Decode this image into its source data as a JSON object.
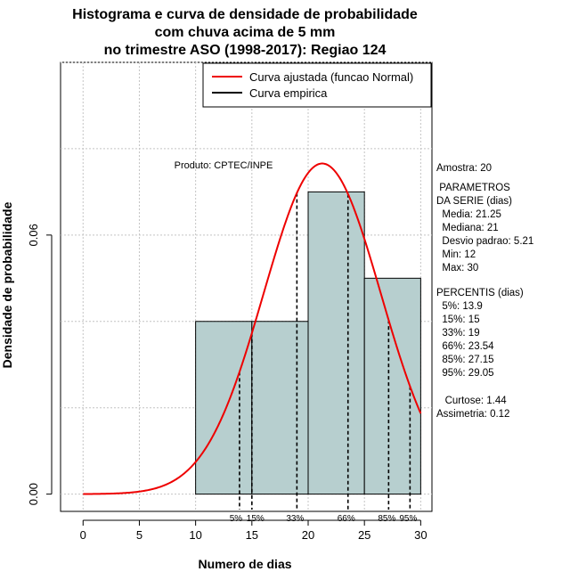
{
  "chart_data": {
    "type": "histogram",
    "title_lines": [
      "Histograma e curva de densidade de probabilidade",
      "com chuva acima de 5 mm",
      "no trimestre ASO (1998-2017): Regiao 124"
    ],
    "xlabel": "Numero de dias",
    "ylabel": "Densidade de probabilidade",
    "xlim": [
      -2,
      31
    ],
    "ylim": [
      -0.004,
      0.1
    ],
    "x_ticks": [
      0,
      5,
      10,
      15,
      20,
      25,
      30
    ],
    "y_ticks": [
      0.0,
      0.06
    ],
    "y_tick_labels": [
      "0.00",
      "0.06"
    ],
    "grid": true,
    "bar_color": "#b7cfcf",
    "curve_color": "#ee0000",
    "bins": [
      {
        "from": 10,
        "to": 15,
        "density": 0.04
      },
      {
        "from": 15,
        "to": 20,
        "density": 0.04
      },
      {
        "from": 20,
        "to": 25,
        "density": 0.07
      },
      {
        "from": 25,
        "to": 30,
        "density": 0.05
      }
    ],
    "normal_fit": {
      "mean": 21.25,
      "sd": 5.21,
      "x_from": 0,
      "x_to": 30
    },
    "percentile_markers": [
      {
        "label": "5%",
        "x": 13.9
      },
      {
        "label": "15%",
        "x": 15
      },
      {
        "label": "33%",
        "x": 19
      },
      {
        "label": "66%",
        "x": 23.54
      },
      {
        "label": "85%",
        "x": 27.15
      },
      {
        "label": "95%",
        "x": 29.05
      }
    ],
    "legend": {
      "position": "top-right",
      "entries": [
        {
          "label": "Curva ajustada (funcao Normal)",
          "color": "#ee0000"
        },
        {
          "label": "Curva empirica",
          "color": "#000000"
        }
      ]
    },
    "annotation": "Produto: CPTEC/INPE"
  },
  "side_panel": {
    "amostra": "Amostra: 20",
    "param_title_1": " PARAMETROS",
    "param_title_2": "DA SERIE (dias)",
    "media": "  Media: 21.25",
    "mediana": "  Mediana: 21",
    "desvio": "  Desvio padrao: 5.21",
    "min": "  Min: 12",
    "max": "  Max: 30",
    "percentis_title": "PERCENTIS (dias)",
    "p5": "  5%: 13.9",
    "p15": "  15%: 15",
    "p33": "  33%: 19",
    "p66": "  66%: 23.54",
    "p85": "  85%: 27.15",
    "p95": "  95%: 29.05",
    "curtose": "   Curtose: 1.44",
    "assimetria": "Assimetria: 0.12"
  }
}
